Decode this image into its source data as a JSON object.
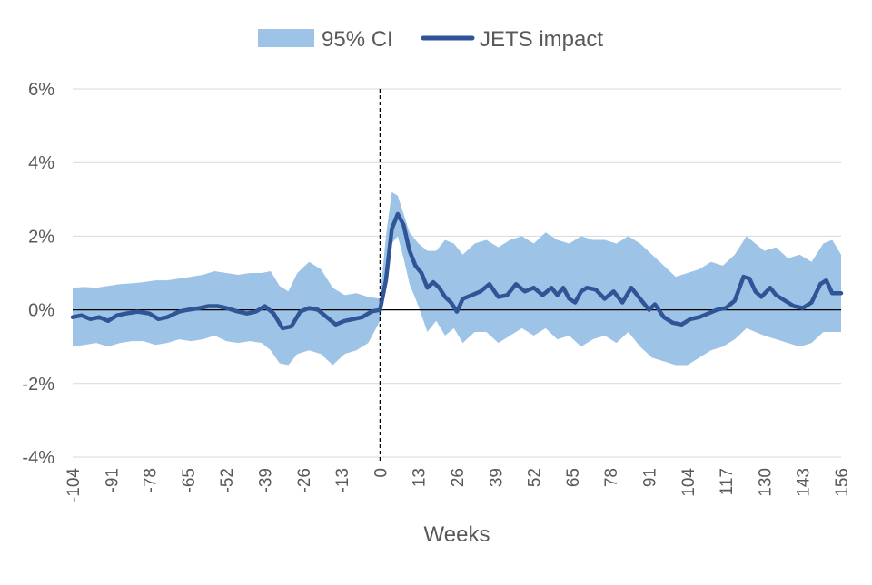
{
  "chart_data": {
    "type": "area",
    "title": "",
    "xlabel": "Weeks",
    "ylabel": "",
    "xlim": [
      -104,
      156
    ],
    "ylim": [
      -4,
      6
    ],
    "y_unit": "%",
    "x_ticks": [
      -104,
      -91,
      -78,
      -65,
      -52,
      -39,
      -26,
      -13,
      0,
      13,
      26,
      39,
      52,
      65,
      78,
      91,
      104,
      117,
      130,
      143,
      156
    ],
    "x_tick_labels": [
      "-104",
      "-91",
      "-78",
      "-65",
      "-52",
      "-39",
      "-26",
      "-13",
      "0",
      "13",
      "26",
      "39",
      "52",
      "65",
      "78",
      "91",
      "104",
      "117",
      "130",
      "143",
      "156"
    ],
    "y_ticks": [
      -4,
      -2,
      0,
      2,
      4,
      6
    ],
    "y_tick_labels": [
      "-4%",
      "-2%",
      "0%",
      "2%",
      "4%",
      "6%"
    ],
    "grid": "horizontal",
    "legend_position": "top",
    "reference_lines": {
      "x": 0,
      "x_style": "dashed",
      "y": 0,
      "y_style": "solid"
    },
    "colors": {
      "ci_band": "#9dc3e6",
      "impact_line": "#2f5597",
      "grid": "#d9d9d9",
      "axis": "#000000"
    },
    "series": [
      {
        "name": "95% CI",
        "kind": "band",
        "points": [
          [
            -104,
            -1.0,
            0.6
          ],
          [
            -100,
            -0.95,
            0.62
          ],
          [
            -96,
            -0.9,
            0.6
          ],
          [
            -92,
            -1.0,
            0.65
          ],
          [
            -88,
            -0.9,
            0.7
          ],
          [
            -84,
            -0.85,
            0.72
          ],
          [
            -80,
            -0.85,
            0.75
          ],
          [
            -76,
            -0.95,
            0.8
          ],
          [
            -72,
            -0.9,
            0.8
          ],
          [
            -68,
            -0.8,
            0.85
          ],
          [
            -64,
            -0.85,
            0.9
          ],
          [
            -60,
            -0.8,
            0.95
          ],
          [
            -56,
            -0.7,
            1.05
          ],
          [
            -52,
            -0.85,
            1.0
          ],
          [
            -48,
            -0.9,
            0.95
          ],
          [
            -44,
            -0.85,
            1.0
          ],
          [
            -40,
            -0.9,
            1.0
          ],
          [
            -37,
            -1.1,
            1.05
          ],
          [
            -34,
            -1.45,
            0.65
          ],
          [
            -31,
            -1.5,
            0.5
          ],
          [
            -28,
            -1.2,
            1.0
          ],
          [
            -24,
            -1.1,
            1.3
          ],
          [
            -20,
            -1.2,
            1.1
          ],
          [
            -16,
            -1.5,
            0.6
          ],
          [
            -12,
            -1.2,
            0.4
          ],
          [
            -8,
            -1.1,
            0.45
          ],
          [
            -4,
            -0.9,
            0.35
          ],
          [
            0,
            -0.3,
            0.3
          ],
          [
            2,
            0.5,
            2.0
          ],
          [
            4,
            1.8,
            3.2
          ],
          [
            6,
            2.0,
            3.1
          ],
          [
            8,
            1.4,
            2.6
          ],
          [
            10,
            0.7,
            2.1
          ],
          [
            13,
            0.1,
            1.8
          ],
          [
            16,
            -0.6,
            1.6
          ],
          [
            19,
            -0.3,
            1.6
          ],
          [
            22,
            -0.7,
            1.9
          ],
          [
            25,
            -0.5,
            1.8
          ],
          [
            28,
            -0.9,
            1.5
          ],
          [
            32,
            -0.6,
            1.8
          ],
          [
            36,
            -0.6,
            1.9
          ],
          [
            40,
            -0.9,
            1.7
          ],
          [
            44,
            -0.7,
            1.9
          ],
          [
            48,
            -0.5,
            2.0
          ],
          [
            52,
            -0.7,
            1.8
          ],
          [
            56,
            -0.5,
            2.1
          ],
          [
            60,
            -0.8,
            1.9
          ],
          [
            64,
            -0.7,
            1.8
          ],
          [
            68,
            -1.0,
            2.0
          ],
          [
            72,
            -0.8,
            1.9
          ],
          [
            76,
            -0.7,
            1.9
          ],
          [
            80,
            -0.9,
            1.8
          ],
          [
            84,
            -0.6,
            2.0
          ],
          [
            88,
            -1.0,
            1.8
          ],
          [
            92,
            -1.3,
            1.5
          ],
          [
            96,
            -1.4,
            1.2
          ],
          [
            100,
            -1.5,
            0.9
          ],
          [
            104,
            -1.5,
            1.0
          ],
          [
            108,
            -1.3,
            1.1
          ],
          [
            112,
            -1.1,
            1.3
          ],
          [
            116,
            -1.0,
            1.2
          ],
          [
            120,
            -0.8,
            1.5
          ],
          [
            124,
            -0.5,
            2.0
          ],
          [
            127,
            -0.6,
            1.8
          ],
          [
            130,
            -0.7,
            1.6
          ],
          [
            134,
            -0.8,
            1.7
          ],
          [
            138,
            -0.9,
            1.4
          ],
          [
            142,
            -1.0,
            1.5
          ],
          [
            146,
            -0.9,
            1.3
          ],
          [
            150,
            -0.6,
            1.8
          ],
          [
            153,
            -0.6,
            1.9
          ],
          [
            156,
            -0.6,
            1.5
          ]
        ]
      },
      {
        "name": "JETS impact",
        "kind": "line",
        "points": [
          [
            -104,
            -0.2
          ],
          [
            -101,
            -0.15
          ],
          [
            -98,
            -0.25
          ],
          [
            -95,
            -0.2
          ],
          [
            -92,
            -0.3
          ],
          [
            -89,
            -0.15
          ],
          [
            -86,
            -0.1
          ],
          [
            -82,
            -0.05
          ],
          [
            -78,
            -0.1
          ],
          [
            -75,
            -0.25
          ],
          [
            -72,
            -0.2
          ],
          [
            -68,
            -0.05
          ],
          [
            -65,
            0.0
          ],
          [
            -61,
            0.05
          ],
          [
            -58,
            0.1
          ],
          [
            -55,
            0.1
          ],
          [
            -52,
            0.05
          ],
          [
            -48,
            -0.05
          ],
          [
            -45,
            -0.1
          ],
          [
            -42,
            -0.05
          ],
          [
            -39,
            0.1
          ],
          [
            -36,
            -0.1
          ],
          [
            -33,
            -0.5
          ],
          [
            -30,
            -0.45
          ],
          [
            -27,
            -0.05
          ],
          [
            -24,
            0.05
          ],
          [
            -21,
            0.0
          ],
          [
            -18,
            -0.2
          ],
          [
            -15,
            -0.4
          ],
          [
            -12,
            -0.3
          ],
          [
            -9,
            -0.25
          ],
          [
            -6,
            -0.2
          ],
          [
            -3,
            -0.05
          ],
          [
            0,
            0.0
          ],
          [
            2,
            0.8
          ],
          [
            4,
            2.2
          ],
          [
            6,
            2.6
          ],
          [
            8,
            2.3
          ],
          [
            10,
            1.6
          ],
          [
            12,
            1.2
          ],
          [
            14,
            1.0
          ],
          [
            16,
            0.6
          ],
          [
            18,
            0.75
          ],
          [
            20,
            0.6
          ],
          [
            22,
            0.35
          ],
          [
            24,
            0.2
          ],
          [
            26,
            -0.05
          ],
          [
            28,
            0.3
          ],
          [
            31,
            0.4
          ],
          [
            34,
            0.5
          ],
          [
            37,
            0.7
          ],
          [
            40,
            0.35
          ],
          [
            43,
            0.4
          ],
          [
            46,
            0.7
          ],
          [
            49,
            0.5
          ],
          [
            52,
            0.6
          ],
          [
            55,
            0.4
          ],
          [
            58,
            0.6
          ],
          [
            60,
            0.4
          ],
          [
            62,
            0.6
          ],
          [
            64,
            0.3
          ],
          [
            66,
            0.2
          ],
          [
            68,
            0.5
          ],
          [
            70,
            0.6
          ],
          [
            73,
            0.55
          ],
          [
            76,
            0.3
          ],
          [
            79,
            0.5
          ],
          [
            82,
            0.2
          ],
          [
            85,
            0.6
          ],
          [
            88,
            0.3
          ],
          [
            91,
            0.0
          ],
          [
            93,
            0.15
          ],
          [
            96,
            -0.2
          ],
          [
            99,
            -0.35
          ],
          [
            102,
            -0.4
          ],
          [
            105,
            -0.25
          ],
          [
            108,
            -0.2
          ],
          [
            111,
            -0.1
          ],
          [
            114,
            0.0
          ],
          [
            117,
            0.05
          ],
          [
            120,
            0.25
          ],
          [
            123,
            0.9
          ],
          [
            125,
            0.85
          ],
          [
            127,
            0.5
          ],
          [
            129,
            0.35
          ],
          [
            132,
            0.6
          ],
          [
            134,
            0.4
          ],
          [
            137,
            0.25
          ],
          [
            140,
            0.1
          ],
          [
            143,
            0.05
          ],
          [
            146,
            0.2
          ],
          [
            149,
            0.7
          ],
          [
            151,
            0.8
          ],
          [
            153,
            0.45
          ],
          [
            156,
            0.45
          ]
        ]
      }
    ]
  }
}
